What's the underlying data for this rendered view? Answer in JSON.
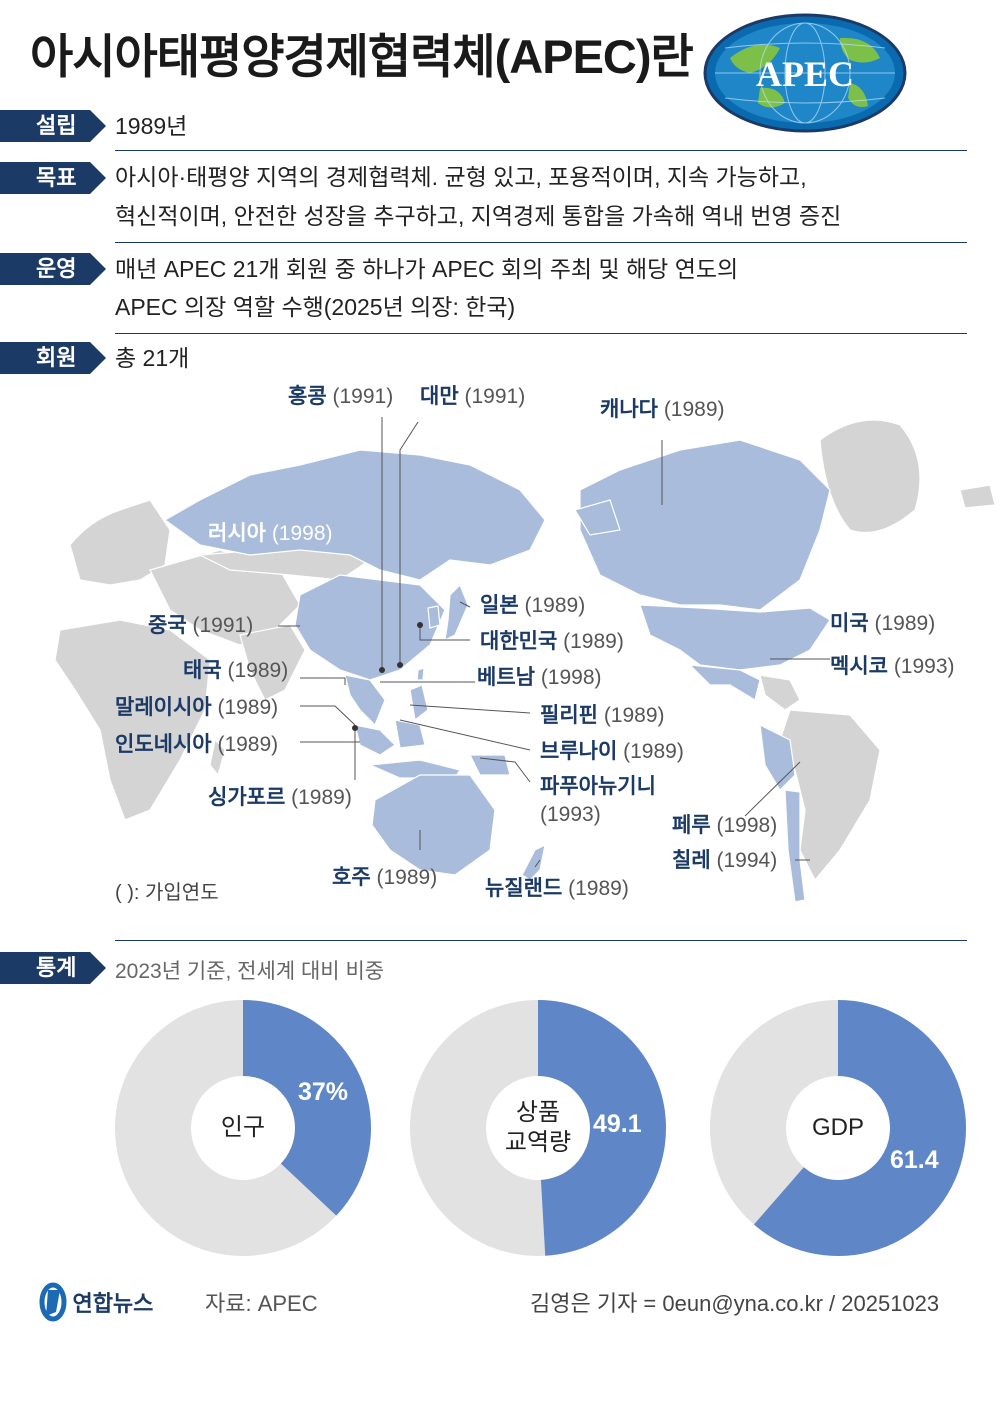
{
  "title": "아시아태평양경제협력체(APEC)란",
  "logo_text": "APEC",
  "colors": {
    "navy": "#1b3a66",
    "member_land": "#a9bcdc",
    "other_land": "#d4d4d4",
    "donut_blue": "#5f86c6",
    "donut_gray": "#e2e2e2"
  },
  "rows": {
    "founded": {
      "tag": "설립",
      "text": "1989년"
    },
    "goal": {
      "tag": "목표",
      "line1": "아시아·태평양 지역의 경제협력체. 균형 있고, 포용적이며, 지속 가능하고,",
      "line2": "혁신적이며, 안전한 성장을 추구하고, 지역경제 통합을 가속해 역내 번영 증진"
    },
    "operation": {
      "tag": "운영",
      "line1": "매년 APEC 21개 회원 중 하나가 APEC 회의 주최 및 해당 연도의",
      "line2": "APEC 의장 역할 수행(2025년 의장: 한국)"
    },
    "members": {
      "tag": "회원",
      "text": "총 21개"
    },
    "stats": {
      "tag": "통계",
      "subtitle": "2023년 기준, 전세계 대비 비중"
    }
  },
  "members": [
    {
      "name": "홍콩",
      "year": "(1991)"
    },
    {
      "name": "대만",
      "year": "(1991)"
    },
    {
      "name": "캐나다",
      "year": "(1989)"
    },
    {
      "name": "러시아",
      "year": "(1998)"
    },
    {
      "name": "일본",
      "year": "(1989)"
    },
    {
      "name": "대한민국",
      "year": "(1989)"
    },
    {
      "name": "중국",
      "year": "(1991)"
    },
    {
      "name": "미국",
      "year": "(1989)"
    },
    {
      "name": "태국",
      "year": "(1989)"
    },
    {
      "name": "베트남",
      "year": "(1998)"
    },
    {
      "name": "멕시코",
      "year": "(1993)"
    },
    {
      "name": "말레이시아",
      "year": "(1989)"
    },
    {
      "name": "필리핀",
      "year": "(1989)"
    },
    {
      "name": "인도네시아",
      "year": "(1989)"
    },
    {
      "name": "브루나이",
      "year": "(1989)"
    },
    {
      "name": "파푸아뉴기니",
      "year": "(1993)"
    },
    {
      "name": "싱가포르",
      "year": "(1989)"
    },
    {
      "name": "페루",
      "year": "(1998)"
    },
    {
      "name": "칠레",
      "year": "(1994)"
    },
    {
      "name": "호주",
      "year": "(1989)"
    },
    {
      "name": "뉴질랜드",
      "year": "(1989)"
    }
  ],
  "map_note": "( ): 가입연도",
  "donuts": [
    {
      "label": "인구",
      "value_text": "37%",
      "share": 37
    },
    {
      "label_line1": "상품",
      "label_line2": "교역량",
      "value_text": "49.1",
      "share": 49.1
    },
    {
      "label": "GDP",
      "value_text": "61.4",
      "share": 61.4
    }
  ],
  "footer": {
    "agency": "연합뉴스",
    "source": "자료: APEC",
    "credit": "김영은 기자 = 0eun@yna.co.kr / 20251023"
  }
}
